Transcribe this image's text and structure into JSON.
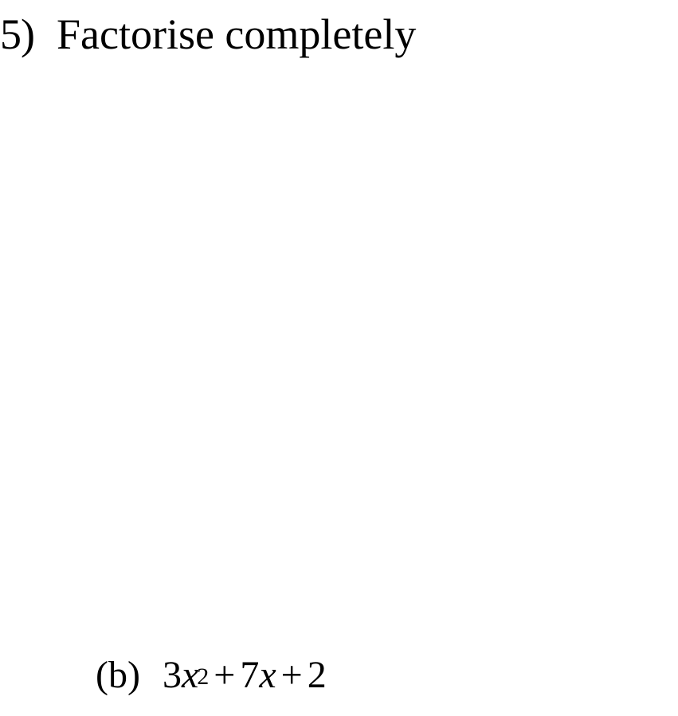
{
  "question": {
    "number": "5)",
    "prompt": "Factorise completely"
  },
  "part": {
    "label": "(b)",
    "expression": {
      "coef1": "3",
      "var1": "x",
      "exp1": "2",
      "op1": "+",
      "coef2": "7",
      "var2": "x",
      "op2": "+",
      "const": "2"
    }
  },
  "styling": {
    "background_color": "#ffffff",
    "text_color": "#000000",
    "font_family": "Times New Roman",
    "header_fontsize": 54,
    "body_fontsize": 48,
    "superscript_fontsize": 30
  }
}
